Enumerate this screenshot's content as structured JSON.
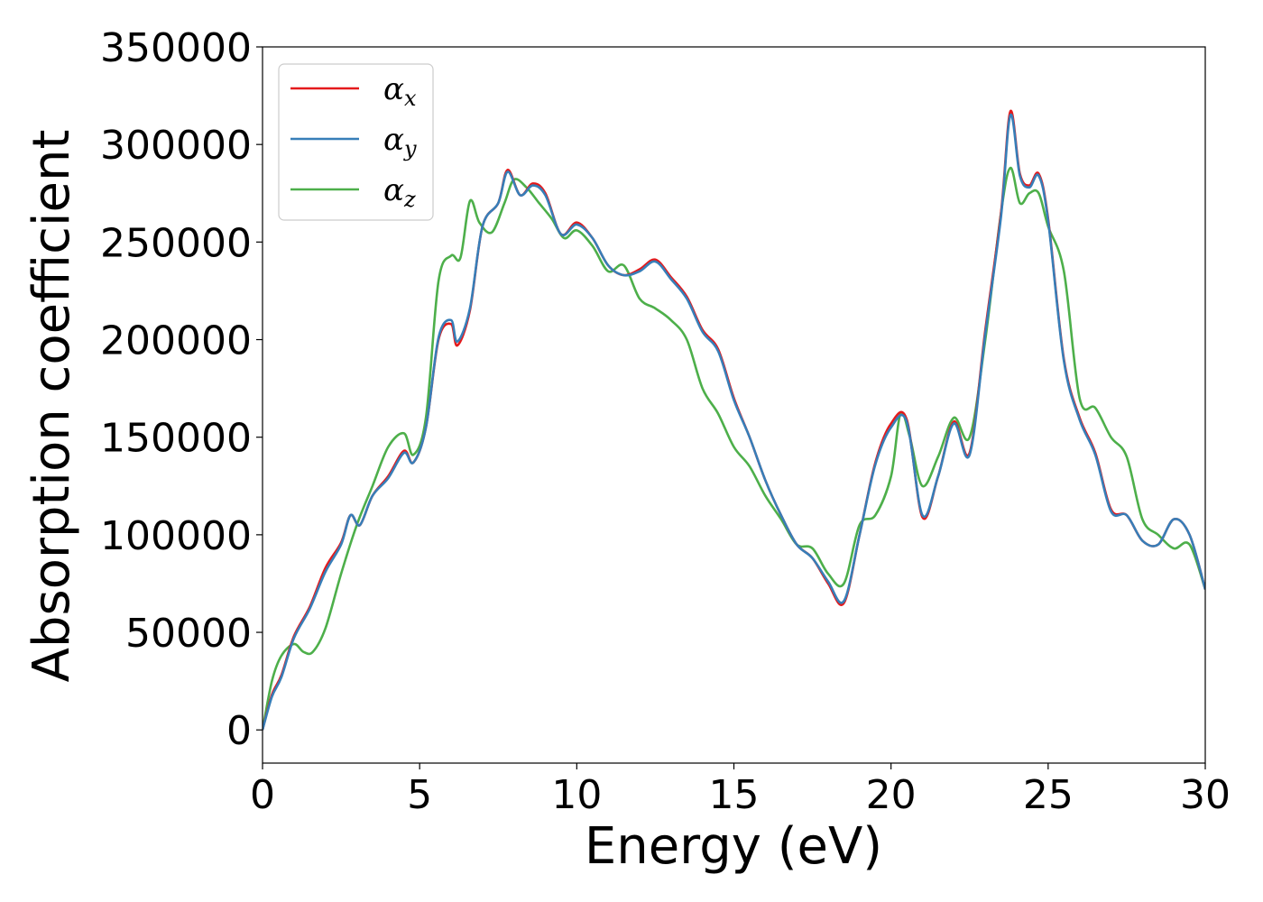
{
  "chart_data": {
    "type": "line",
    "title": "",
    "xlabel": "Energy (eV)",
    "ylabel": "Absorption coefficient",
    "xlim": [
      0,
      30
    ],
    "ylim": [
      -17000,
      350000
    ],
    "xticks": [
      0,
      5,
      10,
      15,
      20,
      25,
      30
    ],
    "xtick_labels": [
      "0",
      "5",
      "10",
      "15",
      "20",
      "25",
      "30"
    ],
    "yticks": [
      0,
      50000,
      100000,
      150000,
      200000,
      250000,
      300000,
      350000
    ],
    "ytick_labels": [
      "0",
      "50000",
      "100000",
      "150000",
      "200000",
      "250000",
      "300000",
      "350000"
    ],
    "grid": false,
    "legend_position": "top-left",
    "series": [
      {
        "name": "α_x",
        "legend_base": "α",
        "legend_sub": "x",
        "color": "#e41a1c",
        "x": [
          0,
          0.3,
          0.6,
          1.0,
          1.5,
          2.0,
          2.5,
          2.8,
          3.1,
          3.5,
          4.0,
          4.5,
          4.8,
          5.2,
          5.6,
          6.0,
          6.2,
          6.6,
          7.0,
          7.5,
          7.8,
          8.2,
          8.6,
          9.0,
          9.5,
          10.0,
          10.5,
          11.0,
          11.5,
          12.0,
          12.5,
          13.0,
          13.5,
          14.0,
          14.5,
          15.0,
          15.5,
          16.0,
          16.5,
          17.0,
          17.5,
          18.0,
          18.5,
          19.0,
          19.5,
          20.0,
          20.5,
          21.0,
          21.5,
          22.0,
          22.5,
          23.0,
          23.5,
          23.8,
          24.1,
          24.4,
          24.7,
          25.0,
          25.5,
          26.0,
          26.5,
          27.0,
          27.5,
          28.0,
          28.5,
          29.0,
          29.5,
          30.0
        ],
        "y": [
          0,
          18000,
          28000,
          48000,
          63000,
          83000,
          96000,
          110000,
          105000,
          120000,
          130000,
          143000,
          137000,
          155000,
          200000,
          208000,
          197000,
          215000,
          258000,
          270000,
          287000,
          274000,
          280000,
          275000,
          254000,
          260000,
          252000,
          238000,
          233000,
          236000,
          241000,
          232000,
          222000,
          205000,
          195000,
          170000,
          150000,
          128000,
          110000,
          95000,
          88000,
          75000,
          65000,
          100000,
          137000,
          157000,
          159000,
          109000,
          130000,
          158000,
          142000,
          205000,
          265000,
          317000,
          285000,
          279000,
          285000,
          262000,
          190000,
          160000,
          142000,
          113000,
          110000,
          97000,
          95000,
          108000,
          100000,
          72000
        ]
      },
      {
        "name": "α_y",
        "legend_base": "α",
        "legend_sub": "y",
        "color": "#377eb8",
        "x": [
          0,
          0.3,
          0.6,
          1.0,
          1.5,
          2.0,
          2.5,
          2.8,
          3.1,
          3.5,
          4.0,
          4.5,
          4.8,
          5.2,
          5.6,
          6.0,
          6.2,
          6.6,
          7.0,
          7.5,
          7.8,
          8.2,
          8.6,
          9.0,
          9.5,
          10.0,
          10.5,
          11.0,
          11.5,
          12.0,
          12.5,
          13.0,
          13.5,
          14.0,
          14.5,
          15.0,
          15.5,
          16.0,
          16.5,
          17.0,
          17.5,
          18.0,
          18.5,
          19.0,
          19.5,
          20.0,
          20.5,
          21.0,
          21.5,
          22.0,
          22.5,
          23.0,
          23.5,
          23.8,
          24.1,
          24.4,
          24.7,
          25.0,
          25.5,
          26.0,
          26.5,
          27.0,
          27.5,
          28.0,
          28.5,
          29.0,
          29.5,
          30.0
        ],
        "y": [
          0,
          17000,
          27000,
          47000,
          62000,
          81000,
          95000,
          110000,
          105000,
          120000,
          129000,
          142000,
          137000,
          155000,
          201000,
          210000,
          199000,
          216000,
          258000,
          270000,
          286000,
          274000,
          279000,
          274000,
          254000,
          259000,
          252000,
          238000,
          233000,
          235000,
          240000,
          231000,
          221000,
          204000,
          194000,
          169000,
          150000,
          128000,
          110000,
          95000,
          88000,
          76000,
          66000,
          100000,
          136000,
          155000,
          158000,
          110000,
          130000,
          157000,
          141000,
          203000,
          263000,
          315000,
          284000,
          278000,
          284000,
          261000,
          189000,
          159000,
          141000,
          112000,
          110000,
          97000,
          95000,
          108000,
          100000,
          72000
        ]
      },
      {
        "name": "α_z",
        "legend_base": "α",
        "legend_sub": "z",
        "color": "#4daf4a",
        "x": [
          0,
          0.3,
          0.6,
          1.0,
          1.3,
          1.6,
          2.0,
          2.5,
          3.0,
          3.5,
          4.0,
          4.5,
          4.8,
          5.2,
          5.6,
          6.0,
          6.3,
          6.6,
          6.9,
          7.3,
          7.7,
          8.0,
          8.4,
          8.8,
          9.2,
          9.6,
          10.0,
          10.5,
          11.0,
          11.5,
          12.0,
          12.5,
          13.0,
          13.5,
          14.0,
          14.5,
          15.0,
          15.5,
          16.0,
          16.5,
          17.0,
          17.5,
          18.0,
          18.5,
          19.0,
          19.5,
          20.0,
          20.3,
          20.6,
          21.0,
          21.5,
          22.0,
          22.5,
          23.0,
          23.5,
          23.8,
          24.1,
          24.4,
          24.7,
          25.0,
          25.5,
          26.0,
          26.5,
          27.0,
          27.5,
          28.0,
          28.5,
          29.0,
          29.5,
          30.0
        ],
        "y": [
          0,
          25000,
          38000,
          44000,
          40000,
          40000,
          52000,
          80000,
          105000,
          125000,
          145000,
          152000,
          141000,
          160000,
          230000,
          243000,
          242000,
          271000,
          260000,
          255000,
          270000,
          282000,
          278000,
          270000,
          262000,
          252000,
          256000,
          248000,
          235000,
          238000,
          221000,
          216000,
          210000,
          200000,
          175000,
          162000,
          145000,
          135000,
          120000,
          108000,
          95000,
          93000,
          80000,
          75000,
          105000,
          110000,
          130000,
          162000,
          150000,
          125000,
          140000,
          160000,
          150000,
          200000,
          265000,
          288000,
          270000,
          275000,
          275000,
          258000,
          235000,
          170000,
          165000,
          150000,
          140000,
          108000,
          100000,
          93000,
          95000,
          72000
        ]
      }
    ]
  }
}
